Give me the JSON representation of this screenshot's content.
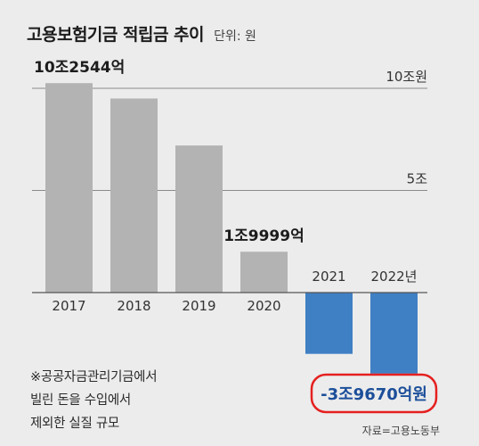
{
  "title": "고용보험기금 적립금 추이",
  "unit": "단위: 원",
  "footnote": [
    "※공공자금관리기금에서",
    "빌린 돈을 수입에서",
    "제외한 실질 규모"
  ],
  "source": "자료=고용노동부",
  "chart_data": {
    "type": "bar",
    "title": "고용보험기금 적립금 추이",
    "unit": "단위: 원",
    "categories": [
      "2017",
      "2018",
      "2019",
      "2020",
      "2021",
      "2022년"
    ],
    "values": [
      10.2544,
      9.5,
      7.2,
      1.9999,
      -3.0,
      -3.967
    ],
    "ylim": [
      -4.5,
      11.5
    ],
    "yticks": [
      {
        "value": 10,
        "label": "10조원"
      },
      {
        "value": 5,
        "label": "5조"
      }
    ],
    "annotations": [
      {
        "index": 0,
        "label": "10조2544억"
      },
      {
        "index": 3,
        "label": "1조9999억"
      },
      {
        "index": 5,
        "label": "-3조9670억원",
        "highlight": true
      }
    ],
    "colors": {
      "positive": "#b3b3b3",
      "negative": "#3f7fc4",
      "highlight_text": "#1c4f9a",
      "circle": "#e52020"
    },
    "grid": true
  }
}
